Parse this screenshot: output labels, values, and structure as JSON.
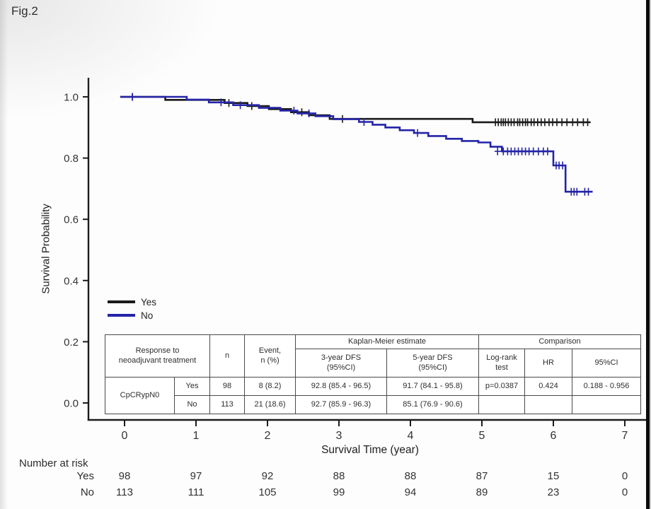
{
  "figure_label": "Fig.2",
  "chart_data": {
    "type": "line",
    "subtype": "kaplan-meier",
    "xlabel": "Survival Time (year)",
    "ylabel": "Survival Probability",
    "xlim": [
      0,
      7
    ],
    "ylim": [
      0.0,
      1.0
    ],
    "grid": false,
    "legend_position": "left-middle",
    "xticks": [
      {
        "label": "0",
        "value": 0
      },
      {
        "label": "1",
        "value": 1
      },
      {
        "label": "2",
        "value": 2
      },
      {
        "label": "3",
        "value": 3
      },
      {
        "label": "4",
        "value": 4
      },
      {
        "label": "5",
        "value": 5
      },
      {
        "label": "6",
        "value": 6
      },
      {
        "label": "7",
        "value": 7
      }
    ],
    "yticks": [
      {
        "label": "0.0",
        "value": 0.0
      },
      {
        "label": "0.2",
        "value": 0.2
      },
      {
        "label": "0.4",
        "value": 0.4
      },
      {
        "label": "0.6",
        "value": 0.6
      },
      {
        "label": "0.8",
        "value": 0.8
      },
      {
        "label": "1.0",
        "value": 1.0
      }
    ],
    "series": [
      {
        "name": "Yes",
        "color": "#1a1a1a",
        "start_x": -0.06,
        "end_x": 6.52,
        "start_p": 1.0,
        "drops": [
          [
            0.57,
            0.99
          ],
          [
            1.4,
            0.98
          ],
          [
            1.72,
            0.97
          ],
          [
            2.02,
            0.96
          ],
          [
            2.33,
            0.95
          ],
          [
            2.58,
            0.94
          ],
          [
            2.87,
            0.928
          ],
          [
            4.87,
            0.917
          ]
        ],
        "censors": [
          [
            0.11,
            1.0
          ],
          [
            1.46,
            0.98
          ],
          [
            1.78,
            0.97
          ],
          [
            2.48,
            0.95
          ],
          [
            3.05,
            0.928
          ],
          [
            5.19,
            0.917
          ],
          [
            5.23,
            0.917
          ],
          [
            5.27,
            0.917
          ],
          [
            5.3,
            0.917
          ],
          [
            5.33,
            0.917
          ],
          [
            5.37,
            0.917
          ],
          [
            5.41,
            0.917
          ],
          [
            5.45,
            0.917
          ],
          [
            5.5,
            0.917
          ],
          [
            5.53,
            0.917
          ],
          [
            5.57,
            0.917
          ],
          [
            5.61,
            0.917
          ],
          [
            5.64,
            0.917
          ],
          [
            5.69,
            0.917
          ],
          [
            5.73,
            0.917
          ],
          [
            5.78,
            0.917
          ],
          [
            5.83,
            0.917
          ],
          [
            5.88,
            0.917
          ],
          [
            5.94,
            0.917
          ],
          [
            5.99,
            0.917
          ],
          [
            6.05,
            0.917
          ],
          [
            6.12,
            0.917
          ],
          [
            6.19,
            0.917
          ],
          [
            6.27,
            0.917
          ],
          [
            6.34,
            0.917
          ],
          [
            6.42,
            0.917
          ],
          [
            6.48,
            0.917
          ]
        ]
      },
      {
        "name": "No",
        "color": "#2424a8",
        "start_x": -0.06,
        "end_x": 6.55,
        "start_p": 1.0,
        "drops": [
          [
            0.87,
            0.991
          ],
          [
            1.18,
            0.982
          ],
          [
            1.52,
            0.973
          ],
          [
            1.88,
            0.964
          ],
          [
            2.18,
            0.955
          ],
          [
            2.42,
            0.946
          ],
          [
            2.67,
            0.937
          ],
          [
            2.92,
            0.927
          ],
          [
            3.28,
            0.918
          ],
          [
            3.47,
            0.909
          ],
          [
            3.65,
            0.9
          ],
          [
            3.85,
            0.891
          ],
          [
            4.05,
            0.882
          ],
          [
            4.25,
            0.872
          ],
          [
            4.5,
            0.863
          ],
          [
            4.72,
            0.856
          ],
          [
            4.95,
            0.851
          ],
          [
            5.12,
            0.837
          ],
          [
            5.28,
            0.822
          ],
          [
            6.0,
            0.776
          ],
          [
            6.17,
            0.69
          ]
        ],
        "censors": [
          [
            0.11,
            1.0
          ],
          [
            1.35,
            0.982
          ],
          [
            1.62,
            0.973
          ],
          [
            2.37,
            0.955
          ],
          [
            2.58,
            0.946
          ],
          [
            3.35,
            0.918
          ],
          [
            4.1,
            0.882
          ],
          [
            5.22,
            0.822
          ],
          [
            5.3,
            0.822
          ],
          [
            5.36,
            0.822
          ],
          [
            5.41,
            0.822
          ],
          [
            5.46,
            0.822
          ],
          [
            5.51,
            0.822
          ],
          [
            5.56,
            0.822
          ],
          [
            5.61,
            0.822
          ],
          [
            5.66,
            0.822
          ],
          [
            5.72,
            0.822
          ],
          [
            5.79,
            0.822
          ],
          [
            5.86,
            0.822
          ],
          [
            5.92,
            0.822
          ],
          [
            6.04,
            0.776
          ],
          [
            6.08,
            0.776
          ],
          [
            6.13,
            0.776
          ],
          [
            6.25,
            0.69
          ],
          [
            6.29,
            0.69
          ],
          [
            6.33,
            0.69
          ],
          [
            6.44,
            0.69
          ],
          [
            6.49,
            0.69
          ]
        ]
      }
    ]
  },
  "stats_table": {
    "headers": {
      "response": "Response to\nneoadjuvant treatment",
      "n": "n",
      "event": "Event,\nn (%)",
      "km": "Kaplan-Meier estimate",
      "dfs3": "3-year DFS\n(95%CI)",
      "dfs5": "5-year DFS\n(95%CI)",
      "comparison": "Comparison",
      "logrank": "Log-rank\ntest",
      "hr": "HR",
      "ci": "95%CI"
    },
    "rows": [
      {
        "group": "CpCRypN0",
        "arm": "Yes",
        "n": "98",
        "event": "8 (8.2)",
        "dfs3": "92.8 (85.4 - 96.5)",
        "dfs5": "91.7 (84.1 - 95.8)",
        "logrank": "p=0.0387",
        "hr": "0.424",
        "ci": "0.188 - 0.956"
      },
      {
        "group": "",
        "arm": "No",
        "n": "113",
        "event": "21 (18.6)",
        "dfs3": "92.7 (85.9 - 96.3)",
        "dfs5": "85.1 (76.9 - 90.6)",
        "logrank": "",
        "hr": "",
        "ci": ""
      }
    ]
  },
  "number_at_risk": {
    "title": "Number at risk",
    "rows": [
      {
        "label": "Yes",
        "values": [
          "98",
          "97",
          "92",
          "88",
          "88",
          "87",
          "15",
          "0"
        ]
      },
      {
        "label": "No",
        "values": [
          "113",
          "111",
          "105",
          "99",
          "94",
          "89",
          "23",
          "0"
        ]
      }
    ]
  }
}
